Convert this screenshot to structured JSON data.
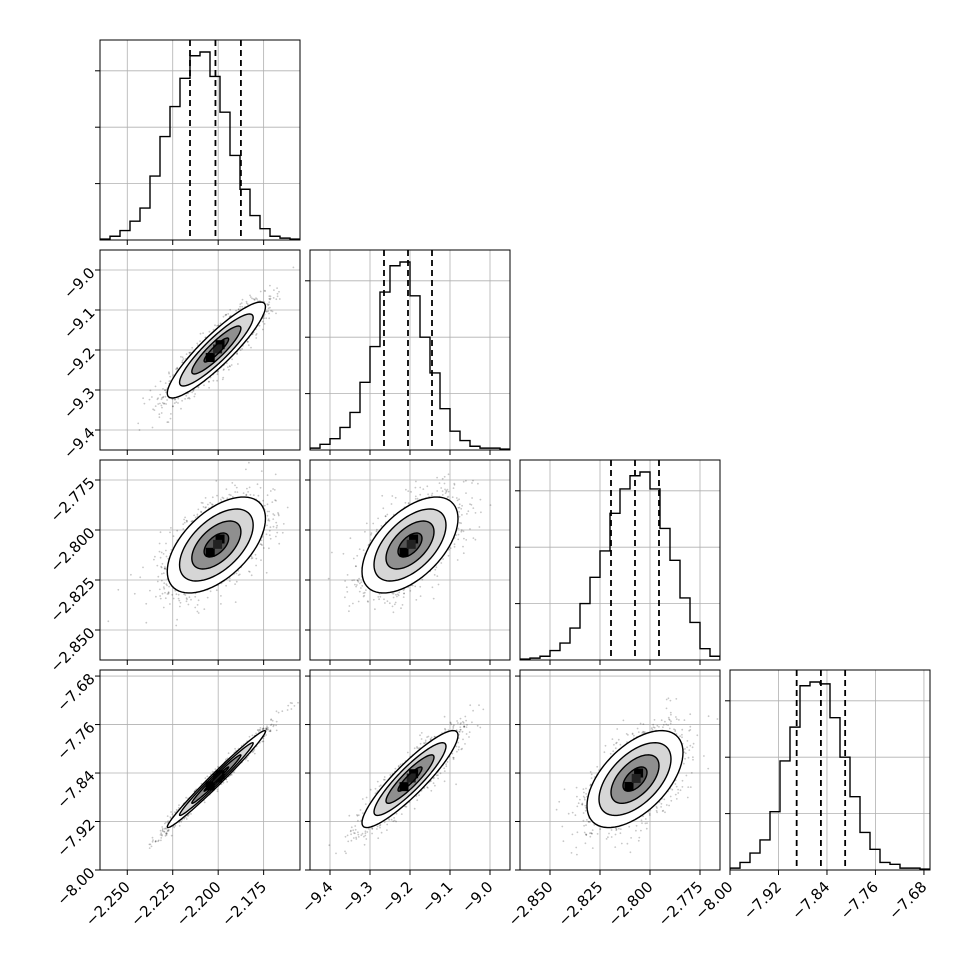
{
  "chart_data": {
    "type": "corner",
    "grid": true,
    "colors": {
      "axes": "#000000",
      "grid": "#b0b0b0",
      "points": "#000000",
      "background": "#ffffff"
    },
    "params": [
      {
        "index": 0,
        "range": [
          -2.265,
          -2.155
        ],
        "ticks": [
          -2.25,
          -2.225,
          -2.2,
          -2.175
        ],
        "tick_labels": [
          "−2.250",
          "−2.225",
          "−2.200",
          "−2.175"
        ],
        "center": -2.201,
        "sigma": 0.0135
      },
      {
        "index": 1,
        "range": [
          -9.45,
          -8.95
        ],
        "ticks": [
          -9.4,
          -9.3,
          -9.2,
          -9.1,
          -9.0
        ],
        "tick_labels": [
          "−9.4",
          "−9.3",
          "−9.2",
          "−9.1",
          "−9.0"
        ],
        "center": -9.2,
        "sigma": 0.06
      },
      {
        "index": 2,
        "range": [
          -2.865,
          -2.765
        ],
        "ticks": [
          -2.85,
          -2.825,
          -2.8,
          -2.775
        ],
        "tick_labels": [
          "−2.850",
          "−2.825",
          "−2.800",
          "−2.775"
        ],
        "center": -2.8075,
        "sigma": 0.012
      },
      {
        "index": 3,
        "range": [
          -8.0,
          -7.67
        ],
        "ticks": [
          -8.0,
          -7.92,
          -7.84,
          -7.76,
          -7.68
        ],
        "tick_labels": [
          "−8.00",
          "−7.92",
          "−7.84",
          "−7.76",
          "−7.68"
        ],
        "center": -7.85,
        "sigma": 0.04
      }
    ],
    "quantile_lines": [
      {
        "param": 0,
        "values": [
          -2.2155,
          -2.2015,
          -2.1875
        ]
      },
      {
        "param": 1,
        "values": [
          -9.265,
          -9.205,
          -9.145
        ]
      },
      {
        "param": 2,
        "values": [
          -2.8195,
          -2.8075,
          -2.7955
        ]
      },
      {
        "param": 3,
        "values": [
          -7.89,
          -7.85,
          -7.81
        ]
      }
    ],
    "histograms": [
      {
        "param": 0,
        "bin_edges": [
          -2.265,
          -2.2595,
          -2.254,
          -2.2485,
          -2.243,
          -2.2375,
          -2.232,
          -2.2265,
          -2.221,
          -2.2155,
          -2.21,
          -2.2045,
          -2.199,
          -2.1935,
          -2.188,
          -2.1825,
          -2.177,
          -2.1715,
          -2.166,
          -2.1605,
          -2.155
        ],
        "counts": [
          0.005,
          0.02,
          0.05,
          0.1,
          0.17,
          0.34,
          0.55,
          0.71,
          0.86,
          0.98,
          1.0,
          0.87,
          0.68,
          0.45,
          0.27,
          0.13,
          0.06,
          0.02,
          0.01,
          0.005
        ]
      },
      {
        "param": 1,
        "bin_edges": [
          -9.45,
          -9.425,
          -9.4,
          -9.375,
          -9.35,
          -9.325,
          -9.3,
          -9.275,
          -9.25,
          -9.225,
          -9.2,
          -9.175,
          -9.15,
          -9.125,
          -9.1,
          -9.075,
          -9.05,
          -9.025,
          -9.0,
          -8.975,
          -8.95
        ],
        "counts": [
          0.01,
          0.03,
          0.06,
          0.12,
          0.2,
          0.36,
          0.55,
          0.84,
          0.98,
          1.0,
          0.82,
          0.6,
          0.41,
          0.22,
          0.1,
          0.05,
          0.02,
          0.01,
          0.01,
          0.005
        ]
      },
      {
        "param": 2,
        "bin_edges": [
          -2.865,
          -2.86,
          -2.855,
          -2.85,
          -2.845,
          -2.84,
          -2.835,
          -2.83,
          -2.825,
          -2.82,
          -2.815,
          -2.81,
          -2.805,
          -2.8,
          -2.795,
          -2.79,
          -2.785,
          -2.78,
          -2.775,
          -2.77,
          -2.765
        ],
        "counts": [
          0.005,
          0.01,
          0.02,
          0.05,
          0.09,
          0.17,
          0.3,
          0.44,
          0.58,
          0.78,
          0.91,
          0.98,
          1.0,
          0.91,
          0.7,
          0.53,
          0.33,
          0.2,
          0.06,
          0.02
        ]
      },
      {
        "param": 3,
        "bin_edges": [
          -8.0,
          -7.9835,
          -7.967,
          -7.9505,
          -7.934,
          -7.9175,
          -7.901,
          -7.8845,
          -7.868,
          -7.8515,
          -7.835,
          -7.8185,
          -7.802,
          -7.7855,
          -7.769,
          -7.7525,
          -7.736,
          -7.7195,
          -7.703,
          -7.6865,
          -7.67
        ],
        "counts": [
          0.01,
          0.04,
          0.09,
          0.16,
          0.31,
          0.58,
          0.76,
          0.98,
          1.0,
          0.99,
          0.81,
          0.6,
          0.39,
          0.2,
          0.11,
          0.04,
          0.03,
          0.01,
          0.01,
          0.005
        ]
      }
    ],
    "pairs": [
      {
        "x_param": 0,
        "y_param": 1,
        "correlation": 0.9
      },
      {
        "x_param": 0,
        "y_param": 2,
        "correlation": 0.55
      },
      {
        "x_param": 1,
        "y_param": 2,
        "correlation": 0.55
      },
      {
        "x_param": 0,
        "y_param": 3,
        "correlation": 0.985
      },
      {
        "x_param": 1,
        "y_param": 3,
        "correlation": 0.9
      },
      {
        "x_param": 2,
        "y_param": 3,
        "correlation": 0.55
      }
    ],
    "contour_levels_sigma": [
      0.5,
      1.0,
      1.5,
      2.0
    ]
  }
}
